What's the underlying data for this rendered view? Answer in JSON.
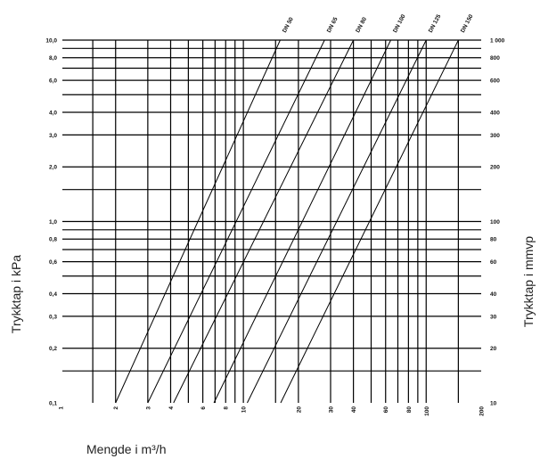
{
  "chart_data": {
    "type": "line",
    "scale": {
      "x": "log",
      "y": "log"
    },
    "xlabel": "Mengde i m³/h",
    "ylabel": "Trykktap i kPa",
    "y2label": "Trykktap i mmvp",
    "xlim": [
      1,
      200
    ],
    "ylim": [
      0.1,
      10
    ],
    "x_tick_labels": [
      {
        "value": 1,
        "label": "1"
      },
      {
        "value": 2,
        "label": "2"
      },
      {
        "value": 3,
        "label": "3"
      },
      {
        "value": 4,
        "label": "4"
      },
      {
        "value": 6,
        "label": "6"
      },
      {
        "value": 8,
        "label": "8"
      },
      {
        "value": 10,
        "label": "10"
      },
      {
        "value": 20,
        "label": "20"
      },
      {
        "value": 30,
        "label": "30"
      },
      {
        "value": 40,
        "label": "40"
      },
      {
        "value": 60,
        "label": "60"
      },
      {
        "value": 80,
        "label": "80"
      },
      {
        "value": 100,
        "label": "100"
      },
      {
        "value": 200,
        "label": "200"
      }
    ],
    "x_grid": [
      1.5,
      2,
      3,
      4,
      5,
      6,
      7,
      8,
      9,
      10,
      15,
      20,
      30,
      40,
      50,
      60,
      70,
      80,
      90,
      100,
      150
    ],
    "y_tick_labels": [
      {
        "value": 0.1,
        "label": "0,1"
      },
      {
        "value": 0.2,
        "label": "0,2"
      },
      {
        "value": 0.3,
        "label": "0,3"
      },
      {
        "value": 0.4,
        "label": "0,4"
      },
      {
        "value": 0.6,
        "label": "0,6"
      },
      {
        "value": 0.8,
        "label": "0,8"
      },
      {
        "value": 1,
        "label": "1,0"
      },
      {
        "value": 2,
        "label": "2,0"
      },
      {
        "value": 3,
        "label": "3,0"
      },
      {
        "value": 4,
        "label": "4,0"
      },
      {
        "value": 6,
        "label": "6,0"
      },
      {
        "value": 8,
        "label": "8,0"
      },
      {
        "value": 10,
        "label": "10,0"
      }
    ],
    "y2_tick_labels": [
      {
        "value": 0.1,
        "label": "10"
      },
      {
        "value": 0.2,
        "label": "20"
      },
      {
        "value": 0.3,
        "label": "30"
      },
      {
        "value": 0.4,
        "label": "40"
      },
      {
        "value": 0.6,
        "label": "60"
      },
      {
        "value": 0.8,
        "label": "80"
      },
      {
        "value": 1,
        "label": "100"
      },
      {
        "value": 2,
        "label": "200"
      },
      {
        "value": 3,
        "label": "300"
      },
      {
        "value": 4,
        "label": "400"
      },
      {
        "value": 6,
        "label": "600"
      },
      {
        "value": 8,
        "label": "800"
      },
      {
        "value": 10,
        "label": "1 000"
      }
    ],
    "y_grid": [
      0.15,
      0.2,
      0.3,
      0.4,
      0.5,
      0.6,
      0.7,
      0.8,
      0.9,
      1,
      1.5,
      2,
      3,
      4,
      5,
      6,
      7,
      8,
      9,
      10
    ],
    "series": [
      {
        "name": "DN 50",
        "x": [
          2,
          15.9
        ],
        "y": [
          0.1,
          10
        ]
      },
      {
        "name": "DN 65",
        "x": [
          3,
          27.8
        ],
        "y": [
          0.1,
          10
        ]
      },
      {
        "name": "DN 80",
        "x": [
          4.15,
          40
        ],
        "y": [
          0.1,
          10
        ]
      },
      {
        "name": "DN 100",
        "x": [
          6.9,
          64
        ],
        "y": [
          0.1,
          10
        ]
      },
      {
        "name": "DN 125",
        "x": [
          10.5,
          100
        ],
        "y": [
          0.1,
          10
        ]
      },
      {
        "name": "DN 150",
        "x": [
          16,
          150
        ],
        "y": [
          0.1,
          10
        ]
      }
    ],
    "grid": true
  }
}
